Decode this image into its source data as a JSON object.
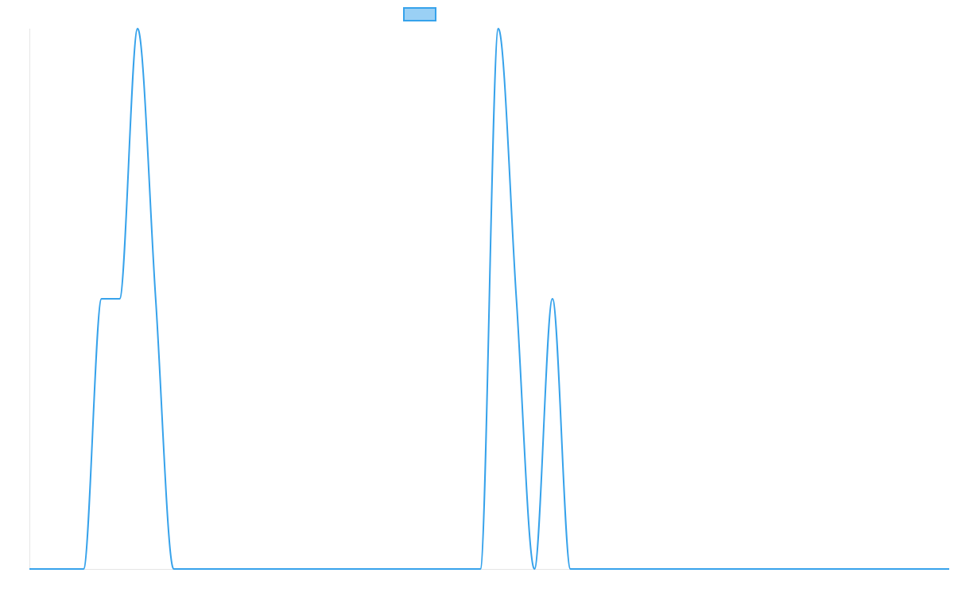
{
  "chart_data": {
    "type": "line",
    "title": "",
    "xlabel": "",
    "ylabel": "",
    "legend": {
      "position": "top-center",
      "label": "",
      "swatch_fill": "#9ad0f5",
      "swatch_stroke": "#36a2eb"
    },
    "xlim": [
      0,
      1020
    ],
    "ylim": [
      0,
      100
    ],
    "grid": false,
    "series": [
      {
        "color": "#36a2eb",
        "x": [
          0,
          60,
          80,
          100,
          120,
          140,
          160,
          500,
          520,
          540,
          560,
          580,
          600,
          620,
          1020
        ],
        "y": [
          0,
          0,
          50,
          50,
          100,
          50,
          0,
          0,
          100,
          50,
          0,
          50,
          0,
          0,
          0
        ]
      }
    ]
  }
}
